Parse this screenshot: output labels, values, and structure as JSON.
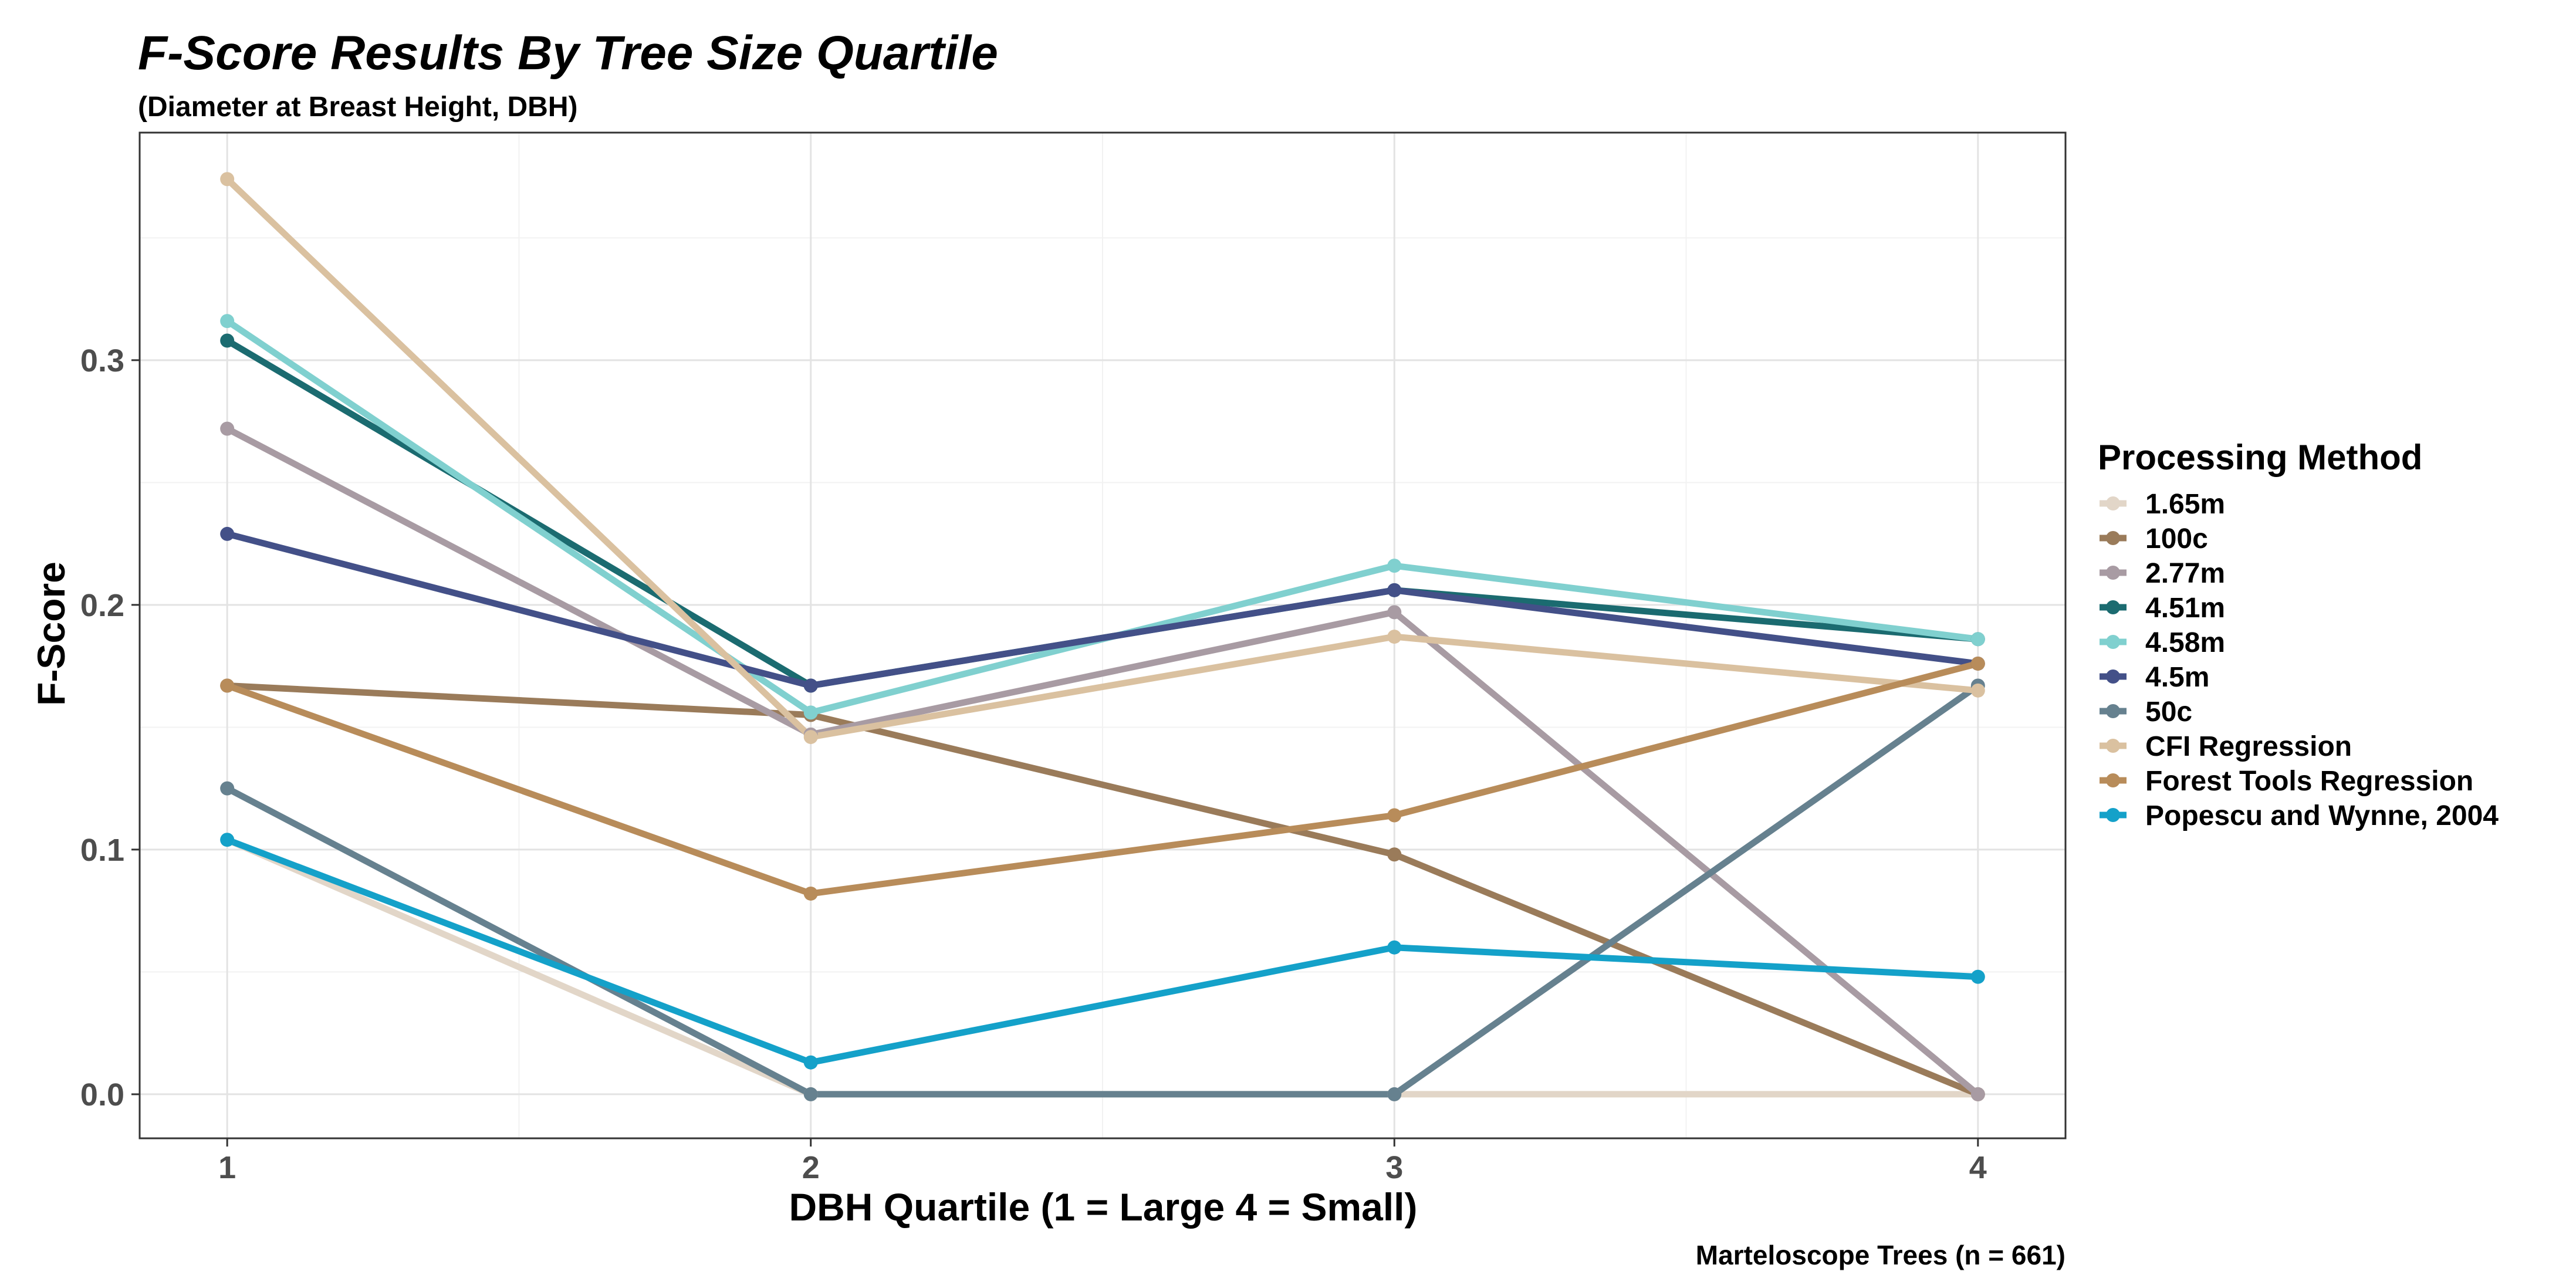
{
  "chart_data": {
    "type": "line",
    "title": "F-Score Results By Tree Size Quartile",
    "subtitle": "(Diameter at Breast Height, DBH)",
    "xlabel": "DBH Quartile (1 = Large  4 = Small)",
    "ylabel": "F-Score",
    "caption": "Marteloscope Trees (n = 661)",
    "x": [
      1,
      2,
      3,
      4
    ],
    "x_tick_labels": [
      "1",
      "2",
      "3",
      "4"
    ],
    "y_ticks": [
      0.0,
      0.1,
      0.2,
      0.3
    ],
    "y_tick_labels": [
      "0.0",
      "0.1",
      "0.2",
      "0.3"
    ],
    "xlim": [
      0.85,
      4.15
    ],
    "ylim": [
      -0.018,
      0.393
    ],
    "grid": true,
    "legend": {
      "title": "Processing Method",
      "position": "right"
    },
    "series": [
      {
        "name": "1.65m",
        "color": "#e2d6c8",
        "values": [
          0.104,
          0.0,
          0.0,
          0.0
        ]
      },
      {
        "name": "100c",
        "color": "#9a7b5a",
        "values": [
          0.167,
          0.155,
          0.098,
          0.0
        ]
      },
      {
        "name": "2.77m",
        "color": "#a89ba3",
        "values": [
          0.272,
          0.147,
          0.197,
          0.0
        ]
      },
      {
        "name": "4.51m",
        "color": "#1b6b70",
        "values": [
          0.308,
          0.167,
          0.206,
          0.186
        ]
      },
      {
        "name": "4.58m",
        "color": "#80d0cf",
        "values": [
          0.316,
          0.156,
          0.216,
          0.186
        ]
      },
      {
        "name": "4.5m",
        "color": "#435088",
        "values": [
          0.229,
          0.167,
          0.206,
          0.176
        ]
      },
      {
        "name": "50c",
        "color": "#66818f",
        "values": [
          0.125,
          0.0,
          0.0,
          0.167
        ]
      },
      {
        "name": "CFI Regression",
        "color": "#dac1a0",
        "values": [
          0.374,
          0.146,
          0.187,
          0.165
        ]
      },
      {
        "name": "Forest Tools Regression",
        "color": "#b88c5a",
        "values": [
          0.167,
          0.082,
          0.114,
          0.176
        ]
      },
      {
        "name": "Popescu and Wynne, 2004",
        "color": "#14a1c9",
        "values": [
          0.104,
          0.013,
          0.06,
          0.048
        ]
      }
    ]
  }
}
